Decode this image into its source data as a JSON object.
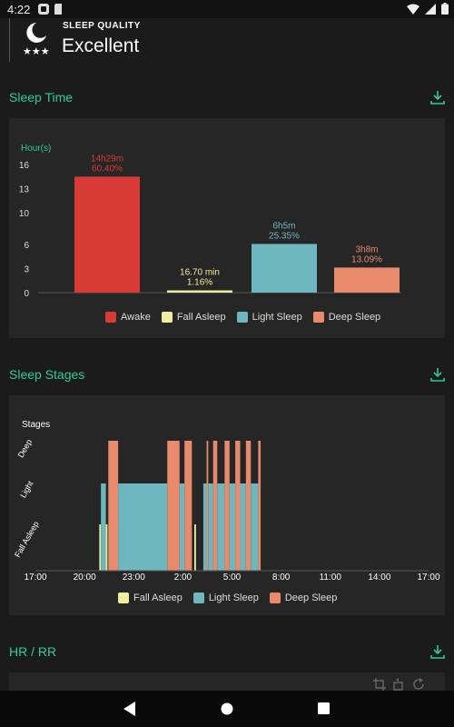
{
  "status_bar": {
    "time": "4:22"
  },
  "sleep_quality": {
    "label": "SLEEP QUALITY",
    "value": "Excellent"
  },
  "sections": {
    "sleep_time": {
      "title": "Sleep Time"
    },
    "sleep_stages": {
      "title": "Sleep Stages"
    },
    "hr_rr": {
      "title": "HR / RR"
    }
  },
  "colors": {
    "awake": "#d83b36",
    "fall_asleep": "#eeeea0",
    "light_sleep": "#6fb7be",
    "deep_sleep": "#e88a6c",
    "accent": "#2ecc9a"
  },
  "chart_data": [
    {
      "type": "bar",
      "ylabel": "Hour(s)",
      "ylim": [
        0,
        16
      ],
      "yticks": [
        0,
        3,
        6,
        10,
        13,
        16
      ],
      "categories": [
        "Awake",
        "Fall Asleep",
        "Light Sleep",
        "Deep Sleep"
      ],
      "values": [
        14.48,
        0.28,
        6.08,
        3.13
      ],
      "label_line1": [
        "14h29m",
        "16.70 min",
        "6h5m",
        "3h8m"
      ],
      "label_line2": [
        "60.40%",
        "1.16%",
        "25.35%",
        "13.09%"
      ],
      "legend": [
        "Awake",
        "Fall Asleep",
        "Light Sleep",
        "Deep Sleep"
      ],
      "legend_placement": "bottom-center"
    },
    {
      "type": "bar",
      "ylabel": "Stages",
      "y_categories": [
        "Fall Asleep",
        "Light",
        "Deep"
      ],
      "x_tick_labels": [
        "17:00",
        "20:00",
        "23:00",
        "2:00",
        "5:00",
        "8:00",
        "11:00",
        "14:00",
        "17:00"
      ],
      "x_range_hours": [
        17,
        41
      ],
      "segments": [
        {
          "stage": "fall",
          "start": 20.9,
          "end": 21.0
        },
        {
          "stage": "light",
          "start": 21.0,
          "end": 21.3
        },
        {
          "stage": "fall",
          "start": 21.3,
          "end": 21.4
        },
        {
          "stage": "deep",
          "start": 21.45,
          "end": 22.05
        },
        {
          "stage": "light",
          "start": 22.05,
          "end": 25.05
        },
        {
          "stage": "deep",
          "start": 25.05,
          "end": 25.8
        },
        {
          "stage": "light",
          "start": 25.8,
          "end": 26.1
        },
        {
          "stage": "deep",
          "start": 26.1,
          "end": 26.55
        },
        {
          "stage": "fall",
          "start": 26.7,
          "end": 26.8
        },
        {
          "stage": "light",
          "start": 27.25,
          "end": 27.45
        },
        {
          "stage": "deep",
          "start": 27.45,
          "end": 27.55
        },
        {
          "stage": "light",
          "start": 27.55,
          "end": 27.85
        },
        {
          "stage": "deep",
          "start": 27.85,
          "end": 28.1
        },
        {
          "stage": "light",
          "start": 28.1,
          "end": 28.55
        },
        {
          "stage": "deep",
          "start": 28.55,
          "end": 28.85
        },
        {
          "stage": "light",
          "start": 28.85,
          "end": 29.2
        },
        {
          "stage": "deep",
          "start": 29.2,
          "end": 29.5
        },
        {
          "stage": "light",
          "start": 29.5,
          "end": 29.85
        },
        {
          "stage": "deep",
          "start": 29.85,
          "end": 30.15
        },
        {
          "stage": "light",
          "start": 30.15,
          "end": 30.6
        },
        {
          "stage": "deep",
          "start": 30.6,
          "end": 30.75
        }
      ],
      "legend": [
        "Fall Asleep",
        "Light Sleep",
        "Deep Sleep"
      ],
      "legend_placement": "bottom-center"
    }
  ],
  "icons": {
    "download": "download-icon",
    "crop": "crop-icon",
    "rotate": "rotate-icon",
    "refresh": "refresh-icon"
  }
}
